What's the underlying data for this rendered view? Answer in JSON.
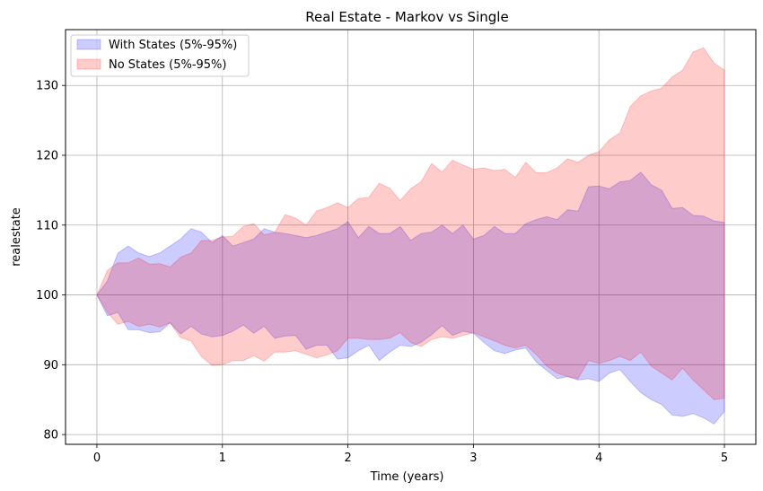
{
  "chart_data": {
    "type": "area",
    "title": "Real Estate - Markov vs Single",
    "xlabel": "Time (years)",
    "ylabel": "realestate",
    "xlim": [
      -0.25,
      5.25
    ],
    "ylim": [
      78.6,
      138
    ],
    "xticks": [
      0,
      1,
      2,
      3,
      4,
      5
    ],
    "yticks": [
      80,
      90,
      100,
      110,
      120,
      130
    ],
    "grid": true,
    "legend_position": "top-left",
    "x": [
      0,
      0.083,
      0.167,
      0.25,
      0.333,
      0.417,
      0.5,
      0.583,
      0.667,
      0.75,
      0.833,
      0.917,
      1.0,
      1.083,
      1.167,
      1.25,
      1.333,
      1.417,
      1.5,
      1.583,
      1.667,
      1.75,
      1.833,
      1.917,
      2.0,
      2.083,
      2.167,
      2.25,
      2.333,
      2.417,
      2.5,
      2.583,
      2.667,
      2.75,
      2.833,
      2.917,
      3.0,
      3.083,
      3.167,
      3.25,
      3.333,
      3.417,
      3.5,
      3.583,
      3.667,
      3.75,
      3.833,
      3.917,
      4.0,
      4.083,
      4.167,
      4.25,
      4.333,
      4.417,
      4.5,
      4.583,
      4.667,
      4.75,
      4.833,
      4.917,
      5.0
    ],
    "series": [
      {
        "name": "With States (5%-95%)",
        "color": "#0000ff",
        "opacity": 0.2,
        "upper": [
          100,
          102,
          106,
          107,
          106,
          105.5,
          106,
          107,
          108,
          109.5,
          109,
          107.5,
          108.5,
          107,
          107.5,
          108,
          109.5,
          109,
          108.8,
          108.5,
          108.2,
          108.5,
          109,
          109.5,
          110.5,
          108.2,
          109.8,
          108.8,
          108.8,
          109.8,
          107.8,
          108.8,
          109,
          110,
          108.8,
          110,
          108,
          108.5,
          109.8,
          108.8,
          108.8,
          110.2,
          110.8,
          111.2,
          110.8,
          112.2,
          112,
          115.5,
          115.6,
          115.2,
          116.2,
          116.4,
          117.6,
          115.8,
          115,
          112.4,
          112.5,
          111.4,
          111.3,
          110.6,
          110.4
        ],
        "lower": [
          100,
          97,
          97.5,
          95,
          95,
          94.6,
          94.7,
          96,
          94.4,
          95.5,
          94.4,
          94.0,
          94.2,
          94.8,
          95.7,
          94.5,
          95.5,
          93.8,
          94.1,
          94.2,
          92.2,
          92.8,
          92.8,
          90.8,
          91,
          92,
          92.8,
          90.6,
          91.8,
          92.8,
          92.6,
          93.2,
          94.3,
          95.6,
          94.2,
          94.8,
          94.5,
          93.2,
          92,
          91.6,
          92.1,
          92.4,
          90.4,
          89.2,
          88,
          88.3,
          87.8,
          88,
          87.6,
          88.8,
          89.3,
          87.6,
          86,
          85,
          84.3,
          82.8,
          82.6,
          83,
          82.4,
          81.5,
          83.3
        ]
      },
      {
        "name": "No States (5%-95%)",
        "color": "#ff0000",
        "opacity": 0.2,
        "upper": [
          100,
          103.5,
          104.6,
          104.6,
          105.3,
          104.4,
          104.5,
          104,
          105.4,
          106,
          107.8,
          107.8,
          108.3,
          108.4,
          109.8,
          110.2,
          108.6,
          109,
          111.5,
          111,
          110,
          112,
          112.5,
          113.2,
          112.5,
          113.8,
          114,
          116,
          115.3,
          113.5,
          115.2,
          116.2,
          118.8,
          117.6,
          119.3,
          118.6,
          118,
          118.2,
          117.8,
          118,
          116.8,
          119,
          117.5,
          117.5,
          118.2,
          119.5,
          119,
          120,
          120.5,
          122.2,
          123.2,
          127,
          128.5,
          129.2,
          129.6,
          131.2,
          132.2,
          134.8,
          135.4,
          133.2,
          132.2
        ],
        "lower": [
          100,
          97.5,
          95.8,
          96.2,
          95.5,
          95.8,
          95.4,
          96,
          93.9,
          93.4,
          91.2,
          89.9,
          90,
          90.6,
          90.6,
          91.3,
          90.5,
          91.8,
          91.8,
          92,
          91.5,
          91,
          91.4,
          92,
          93.8,
          93.8,
          93.6,
          93.6,
          93.8,
          94.6,
          93.2,
          92.6,
          93.6,
          94,
          93.8,
          94.2,
          94.6,
          94,
          93.4,
          92.8,
          92.4,
          92.8,
          91.5,
          89.8,
          88.8,
          88.3,
          88,
          90.6,
          90.2,
          90.6,
          91.2,
          90.6,
          91.8,
          89.8,
          88.8,
          87.8,
          89.5,
          87.8,
          86.4,
          85,
          85.2
        ]
      }
    ]
  }
}
